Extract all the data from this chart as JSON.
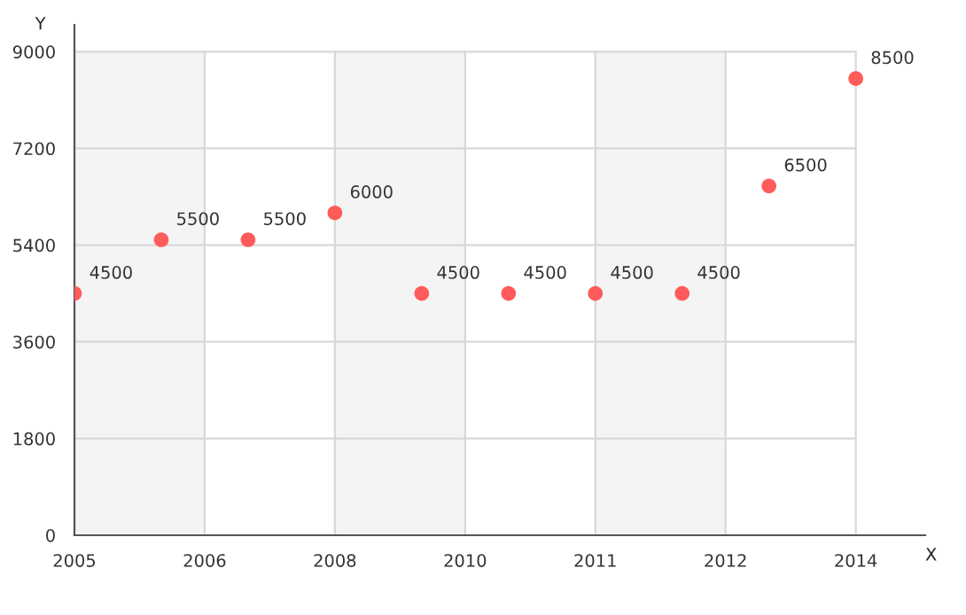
{
  "chart_data": {
    "type": "scatter",
    "xlabel": "X",
    "ylabel": "Y",
    "x": [
      2005,
      2006,
      2007,
      2008,
      2009,
      2010,
      2011,
      2012,
      2013,
      2014
    ],
    "series": [
      {
        "color": "#ff5b5b",
        "values": [
          4500,
          5500,
          5500,
          6000,
          4500,
          4500,
          4500,
          4500,
          6500,
          8500
        ]
      }
    ],
    "data_labels": true,
    "xlim": [
      2005,
      2014.8
    ],
    "xticks": [
      2005,
      {
        "value": 2006.5,
        "label": "2006"
      },
      2008,
      {
        "value": 2009.5,
        "label": "2010"
      },
      2011,
      {
        "value": 2012.5,
        "label": "2012"
      },
      2014
    ],
    "ylim": [
      0,
      9500
    ],
    "yticks": [
      0,
      1800,
      3600,
      5400,
      7200,
      9000
    ],
    "bands": [
      {
        "axis": "x",
        "from": 2005,
        "to": 2006.5,
        "color": "#f4f4f4"
      },
      {
        "axis": "x",
        "from": 2008,
        "to": 2009.5,
        "color": "#f4f4f4"
      },
      {
        "axis": "x",
        "from": 2011,
        "to": 2012.5,
        "color": "#f4f4f4"
      }
    ],
    "grid": true,
    "marker": "circle"
  }
}
